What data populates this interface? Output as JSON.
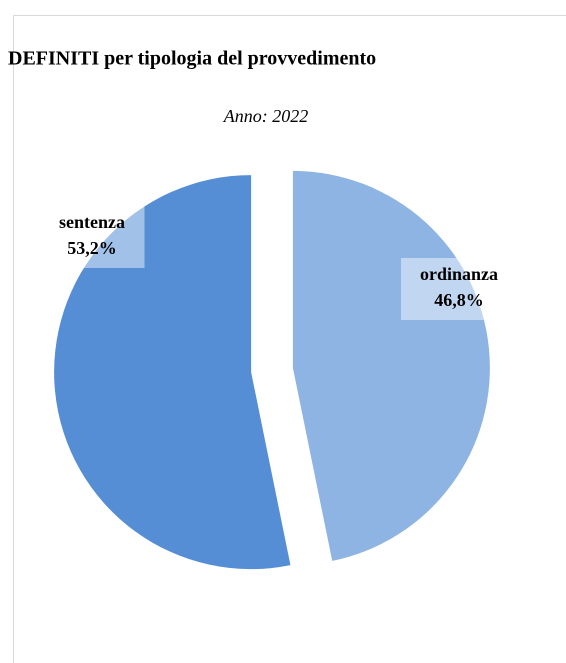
{
  "chart_data": {
    "type": "pie",
    "title": "DEFINITI per tipologia del provvedimento",
    "subtitle": "Anno: 2022",
    "categories": [
      "ordinanza",
      "sentenza"
    ],
    "values": [
      46.8,
      53.2
    ],
    "value_labels": [
      "46,8%",
      "53,2%"
    ],
    "colors": [
      "#8eb4e3",
      "#558ed5"
    ]
  }
}
